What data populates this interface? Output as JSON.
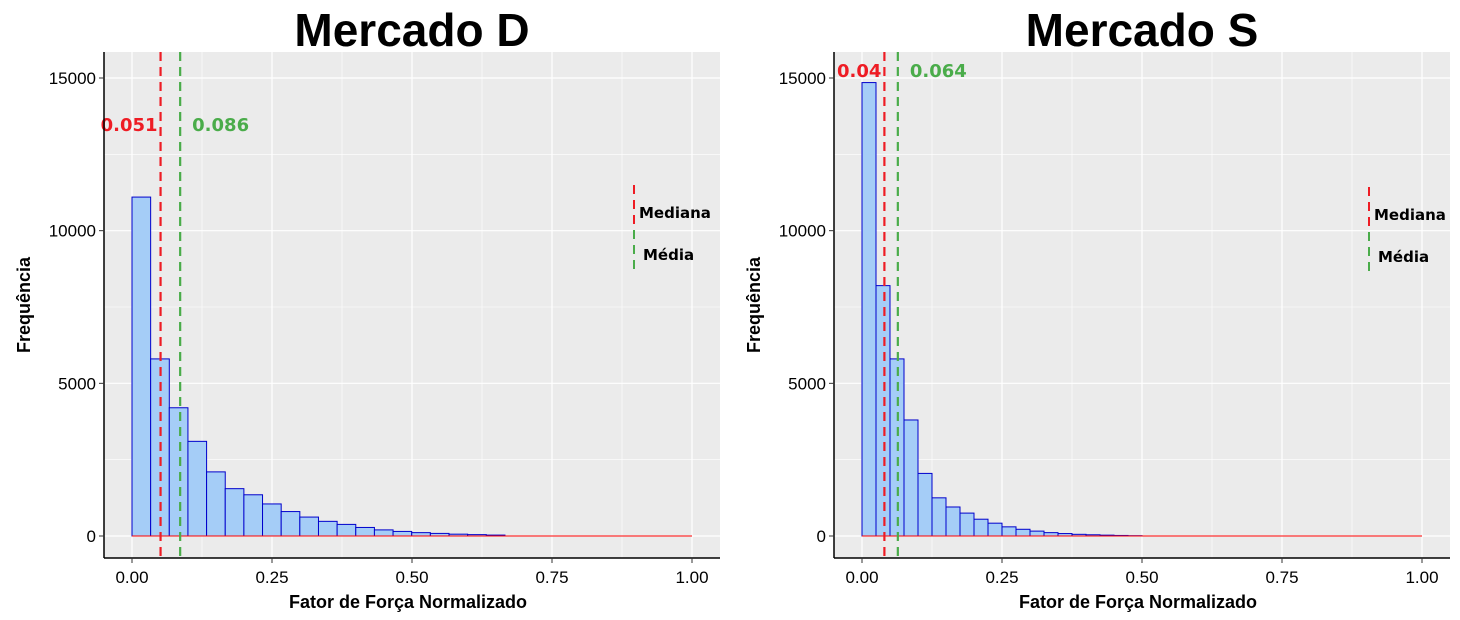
{
  "chart_data": [
    {
      "type": "bar",
      "title": "Mercado D",
      "xlabel": "Fator de Força Normalizado",
      "ylabel": "Frequência",
      "xlim": [
        0,
        1
      ],
      "ylim": [
        0,
        15000
      ],
      "x_ticks": [
        "0.00",
        "0.25",
        "0.50",
        "0.75",
        "1.00"
      ],
      "y_ticks": [
        "0",
        "5000",
        "10000",
        "15000"
      ],
      "grid": true,
      "bin_width": 0.0333,
      "bin_start": 0.0,
      "values": [
        11100,
        5800,
        4200,
        3100,
        2100,
        1550,
        1350,
        1050,
        800,
        620,
        480,
        380,
        280,
        200,
        150,
        110,
        85,
        60,
        45,
        30,
        0,
        0,
        0,
        0,
        0,
        0,
        0,
        0,
        0,
        0
      ],
      "bar_color": "#a5cdf7",
      "bar_edge_color": "#0000cc",
      "baseline_color": "#ff0000",
      "median": {
        "value": 0.051,
        "label": "0.051",
        "color": "#ee1c24"
      },
      "mean": {
        "value": 0.086,
        "label": "0.086",
        "color": "#4aac4a"
      },
      "legend": {
        "position": "right",
        "items": [
          {
            "label": "Mediana",
            "color": "#ee1c24"
          },
          {
            "label": "Média",
            "color": "#4aac4a"
          }
        ]
      }
    },
    {
      "type": "bar",
      "title": "Mercado S",
      "xlabel": "Fator de Força Normalizado",
      "ylabel": "Frequência",
      "xlim": [
        0,
        1
      ],
      "ylim": [
        0,
        15000
      ],
      "x_ticks": [
        "0.00",
        "0.25",
        "0.50",
        "0.75",
        "1.00"
      ],
      "y_ticks": [
        "0",
        "5000",
        "10000",
        "15000"
      ],
      "grid": true,
      "bin_width": 0.025,
      "bin_start": 0.0,
      "values": [
        14850,
        8200,
        5800,
        3800,
        2050,
        1250,
        950,
        750,
        550,
        420,
        300,
        220,
        160,
        110,
        80,
        55,
        40,
        28,
        18,
        10,
        0,
        0,
        0,
        0,
        0,
        0,
        0,
        0,
        0,
        0,
        0,
        0,
        0,
        0,
        0,
        0,
        0,
        0,
        0,
        0
      ],
      "bar_color": "#a5cdf7",
      "bar_edge_color": "#0000cc",
      "baseline_color": "#ff0000",
      "median": {
        "value": 0.04,
        "label": "0.04",
        "color": "#ee1c24"
      },
      "mean": {
        "value": 0.064,
        "label": "0.064",
        "color": "#4aac4a"
      },
      "legend": {
        "position": "right",
        "items": [
          {
            "label": "Mediana",
            "color": "#ee1c24"
          },
          {
            "label": "Média",
            "color": "#4aac4a"
          }
        ]
      }
    }
  ]
}
